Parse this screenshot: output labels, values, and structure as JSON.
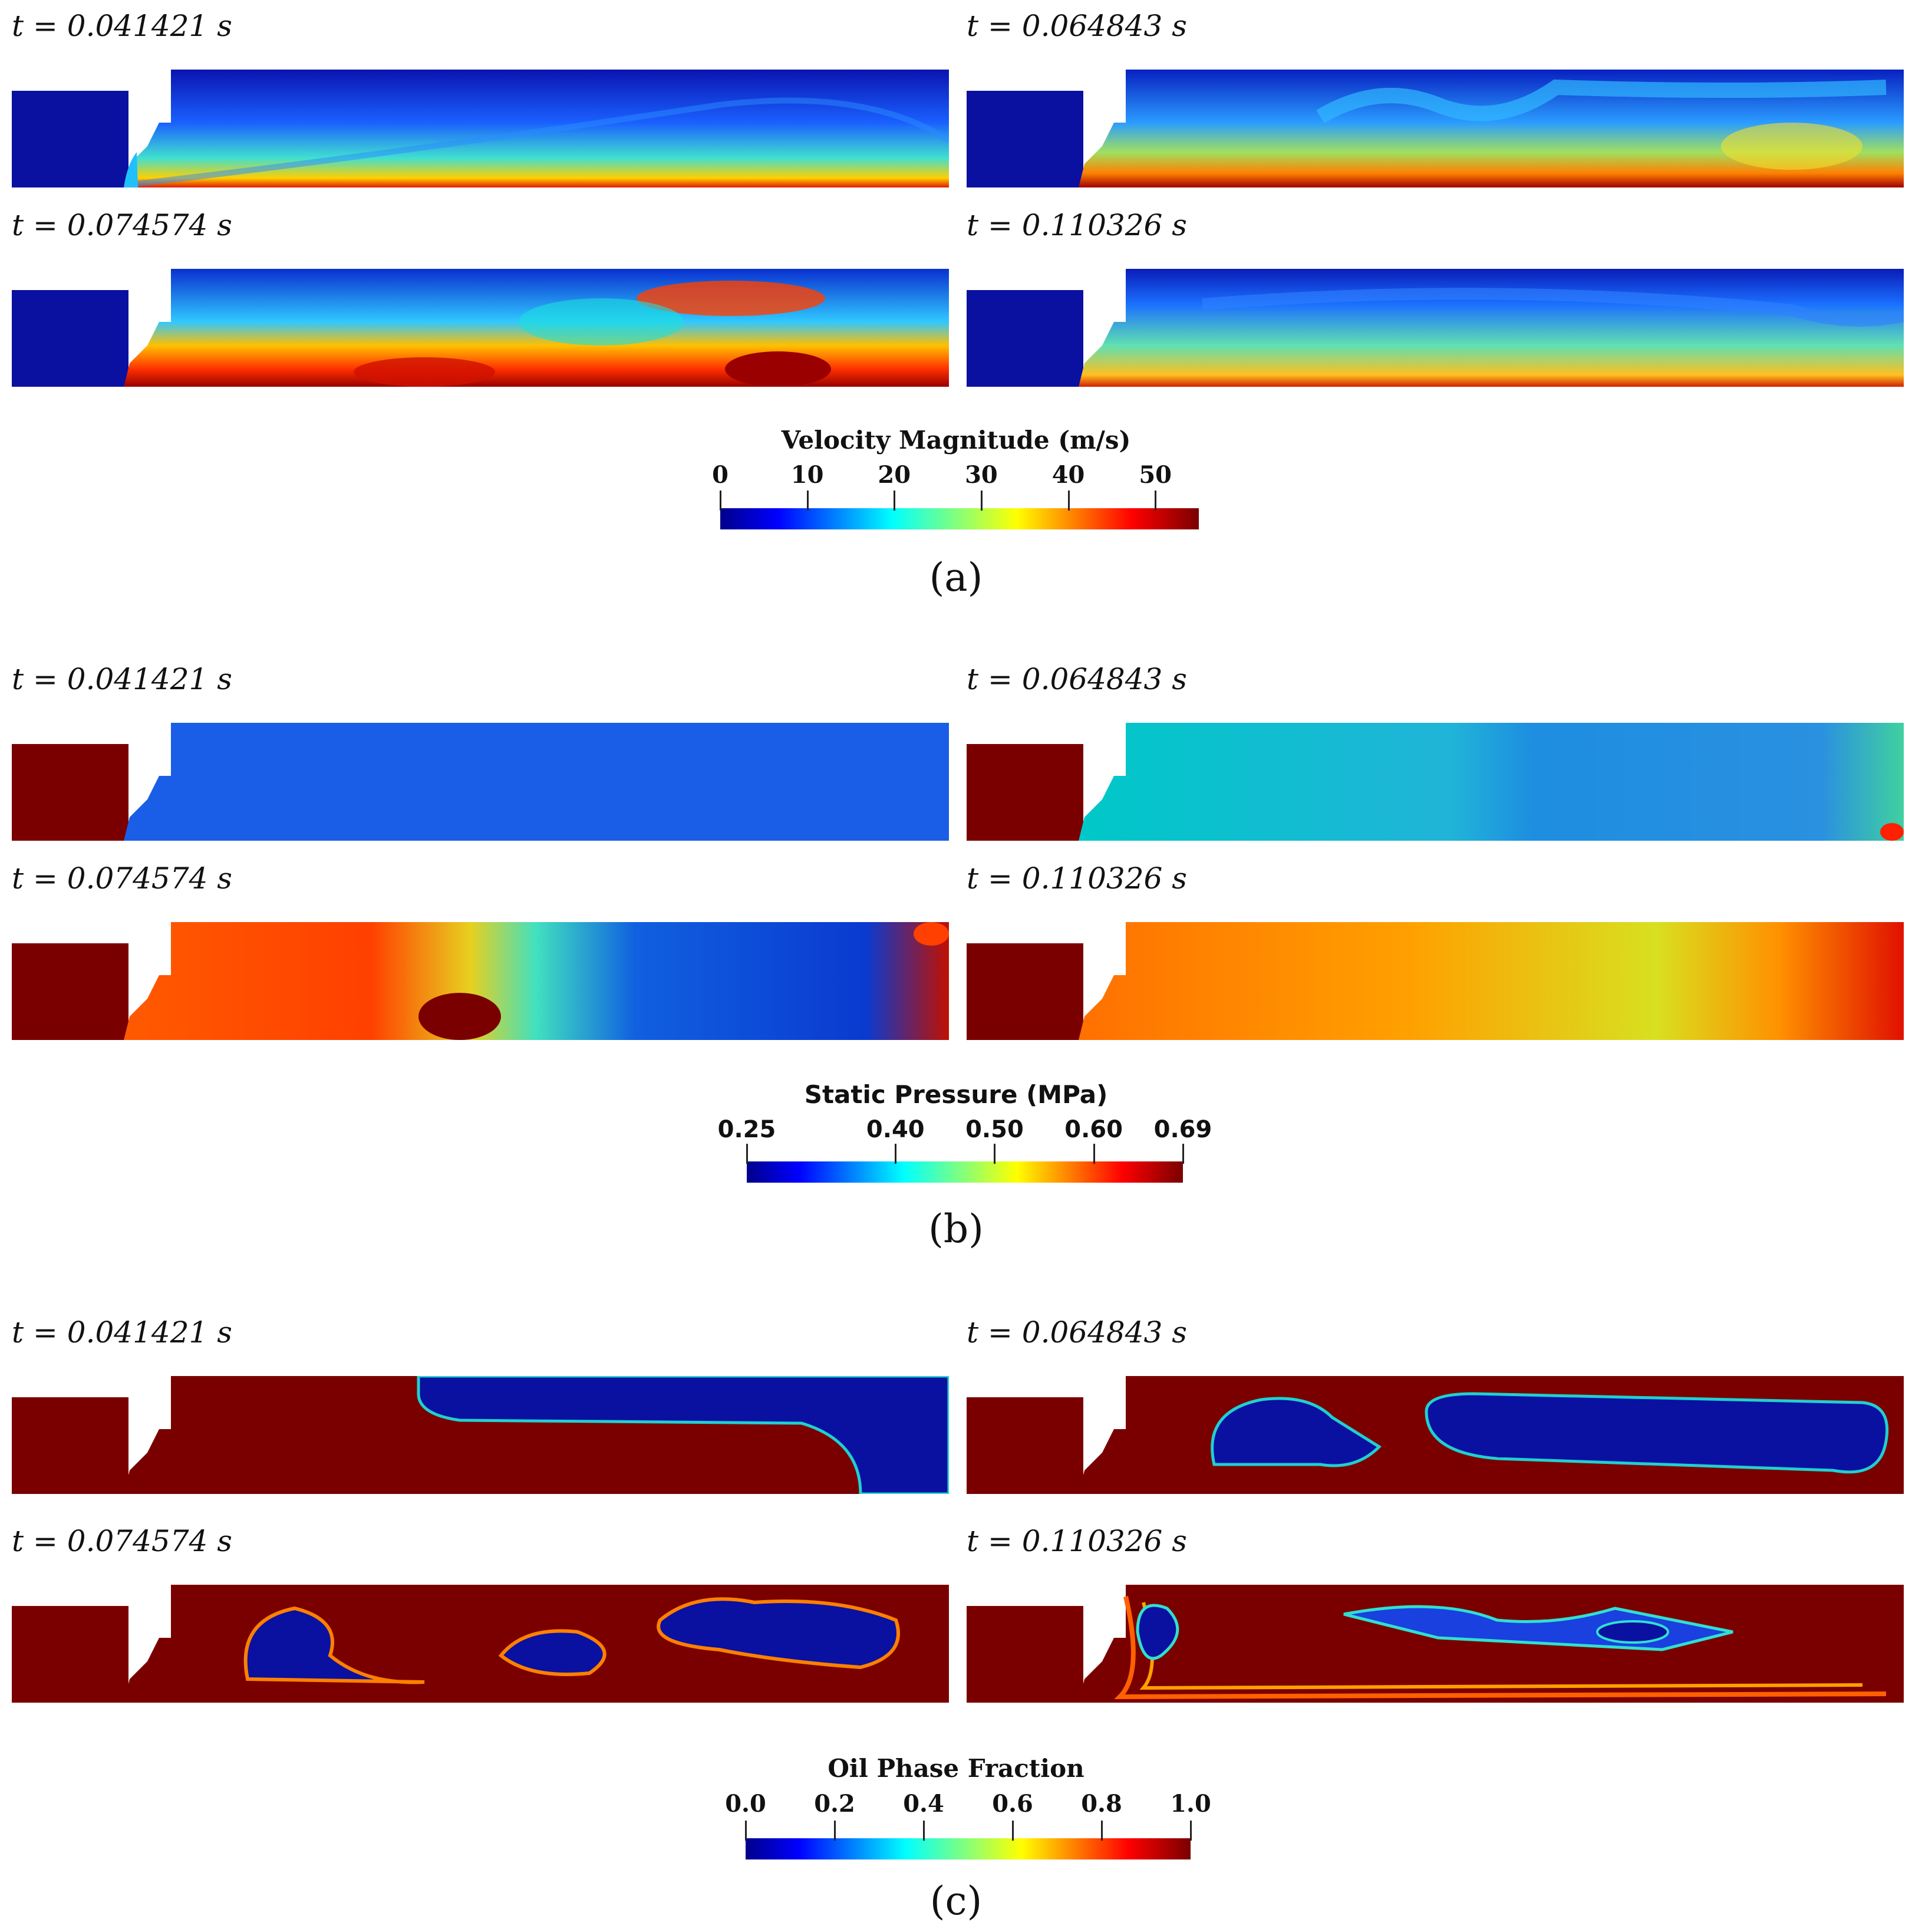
{
  "panels_a": {
    "times": [
      "t = 0.041421 s",
      "t = 0.064843 s",
      "t = 0.074574 s",
      "t = 0.110326 s"
    ],
    "colorbar": {
      "title": "Velocity Magnitude (m/s)",
      "ticks": [
        "0",
        "10",
        "20",
        "30",
        "40",
        "50"
      ],
      "tick_values": [
        0,
        10,
        20,
        30,
        40,
        50
      ],
      "range": [
        0,
        55
      ]
    },
    "label": "(a)"
  },
  "panels_b": {
    "times": [
      "t = 0.041421 s",
      "t = 0.064843 s",
      "t = 0.074574 s",
      "t = 0.110326 s"
    ],
    "colorbar": {
      "title": "Static Pressure (MPa)",
      "ticks": [
        "0.25",
        "0.40",
        "0.50",
        "0.60",
        "0.69"
      ],
      "tick_values": [
        0.25,
        0.4,
        0.5,
        0.6,
        0.69
      ],
      "range": [
        0.25,
        0.69
      ]
    },
    "label": "(b)"
  },
  "panels_c": {
    "times": [
      "t = 0.041421 s",
      "t = 0.064843 s",
      "t = 0.074574 s",
      "t = 0.110326 s"
    ],
    "colorbar": {
      "title": "Oil Phase Fraction",
      "ticks": [
        "0.0",
        "0.2",
        "0.4",
        "0.6",
        "0.8",
        "1.0"
      ],
      "tick_values": [
        0.0,
        0.2,
        0.4,
        0.6,
        0.8,
        1.0
      ],
      "range": [
        0.0,
        1.0
      ]
    },
    "label": "(c)"
  },
  "colors": {
    "jet_dark_red": "#7a0000",
    "jet_dark_blue": "#00008c",
    "jet_blue": "#0000ff",
    "jet_cyan": "#00ffff",
    "jet_yellow": "#ffff00",
    "jet_red": "#ff0000"
  }
}
